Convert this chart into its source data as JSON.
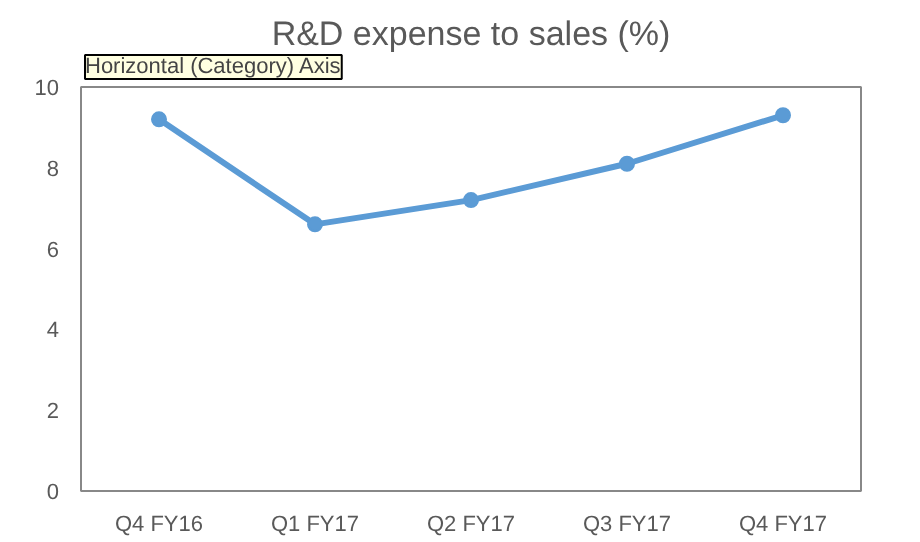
{
  "chart_data": {
    "type": "line",
    "title": "R&D expense to sales (%)",
    "categories": [
      "Q4 FY16",
      "Q1 FY17",
      "Q2 FY17",
      "Q3 FY17",
      "Q4 FY17"
    ],
    "series": [
      {
        "color": "#5b9bd5",
        "values": [
          9.2,
          6.6,
          7.2,
          8.1,
          9.3
        ]
      }
    ],
    "ylim": [
      0,
      10
    ],
    "yticks": [
      0,
      2,
      4,
      6,
      8,
      10
    ],
    "grid": false,
    "marker": "circle",
    "line_style": "solid",
    "annotations": [
      "Horizontal (Category) Axis"
    ]
  }
}
